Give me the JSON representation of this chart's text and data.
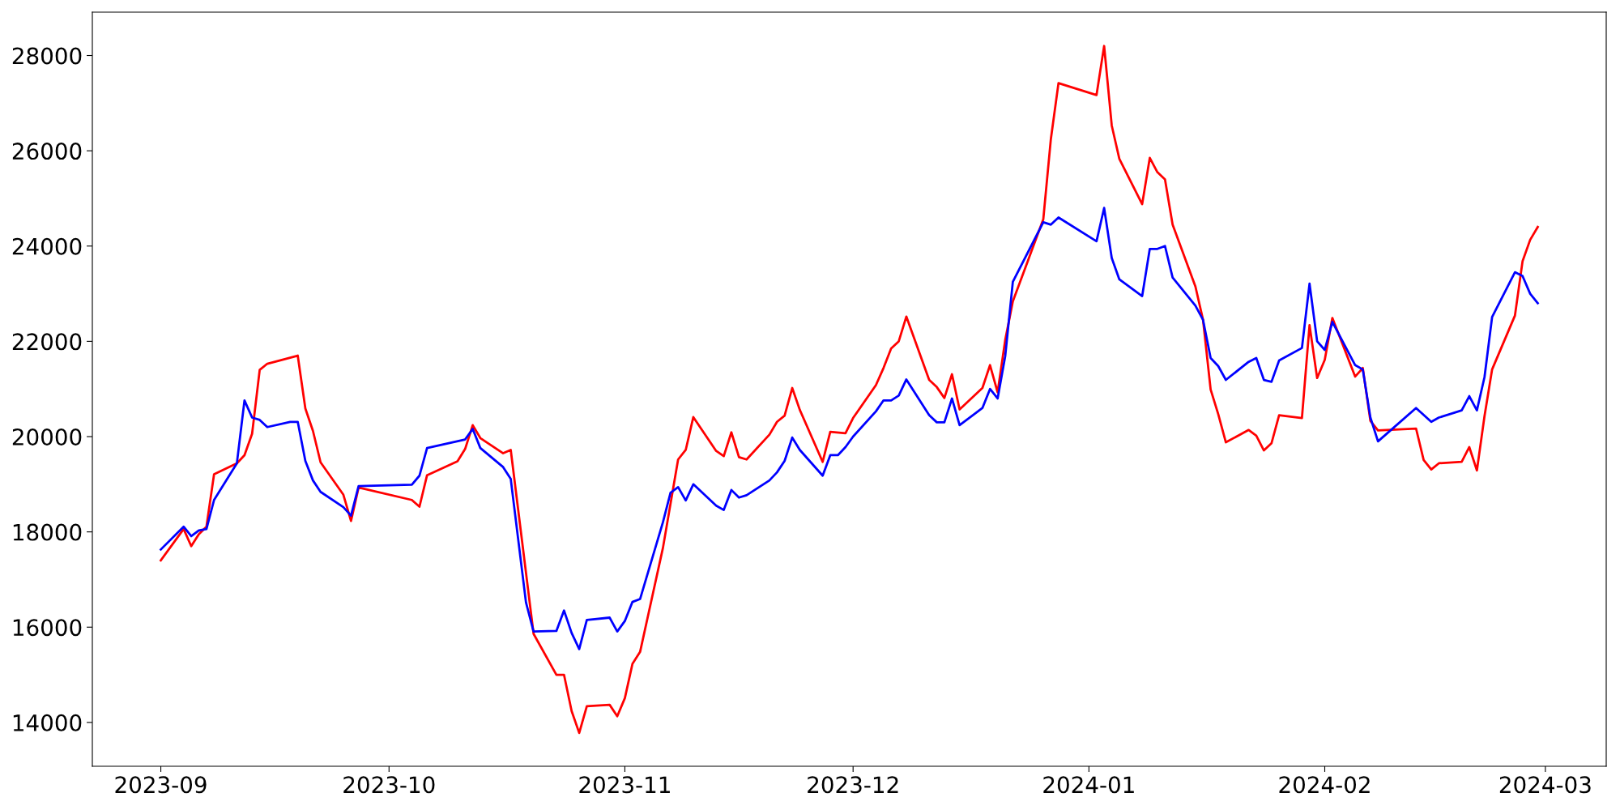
{
  "chart_data": {
    "type": "line",
    "xlim": [
      "2023-08-23",
      "2024-03-09"
    ],
    "ylim": [
      13080,
      28910
    ],
    "xticks": [
      "2023-09",
      "2023-10",
      "2023-11",
      "2023-12",
      "2024-01",
      "2024-02",
      "2024-03"
    ],
    "yticks": [
      14000,
      16000,
      18000,
      20000,
      22000,
      24000,
      26000,
      28000
    ],
    "grid": false,
    "marker": "none",
    "line_style": "solid",
    "series": [
      {
        "color": "#ff0000",
        "x": [
          "2023-09-01",
          "2023-09-04",
          "2023-09-05",
          "2023-09-06",
          "2023-09-07",
          "2023-09-08",
          "2023-09-11",
          "2023-09-12",
          "2023-09-13",
          "2023-09-14",
          "2023-09-15",
          "2023-09-19",
          "2023-09-20",
          "2023-09-21",
          "2023-09-22",
          "2023-09-25",
          "2023-09-26",
          "2023-09-27",
          "2023-10-04",
          "2023-10-05",
          "2023-10-06",
          "2023-10-10",
          "2023-10-11",
          "2023-10-12",
          "2023-10-13",
          "2023-10-16",
          "2023-10-17",
          "2023-10-20",
          "2023-10-23",
          "2023-10-24",
          "2023-10-25",
          "2023-10-26",
          "2023-10-27",
          "2023-10-30",
          "2023-10-31",
          "2023-11-01",
          "2023-11-02",
          "2023-11-03",
          "2023-11-06",
          "2023-11-08",
          "2023-11-09",
          "2023-11-10",
          "2023-11-13",
          "2023-11-14",
          "2023-11-15",
          "2023-11-16",
          "2023-11-17",
          "2023-11-20",
          "2023-11-21",
          "2023-11-22",
          "2023-11-23",
          "2023-11-24",
          "2023-11-27",
          "2023-11-28",
          "2023-11-30",
          "2023-12-01",
          "2023-12-04",
          "2023-12-05",
          "2023-12-06",
          "2023-12-07",
          "2023-12-08",
          "2023-12-11",
          "2023-12-12",
          "2023-12-13",
          "2023-12-14",
          "2023-12-15",
          "2023-12-18",
          "2023-12-19",
          "2023-12-20",
          "2023-12-21",
          "2023-12-22",
          "2023-12-26",
          "2023-12-27",
          "2023-12-28",
          "2024-01-02",
          "2024-01-03",
          "2024-01-04",
          "2024-01-05",
          "2024-01-08",
          "2024-01-09",
          "2024-01-10",
          "2024-01-11",
          "2024-01-12",
          "2024-01-15",
          "2024-01-16",
          "2024-01-17",
          "2024-01-18",
          "2024-01-19",
          "2024-01-22",
          "2024-01-23",
          "2024-01-24",
          "2024-01-25",
          "2024-01-26",
          "2024-01-29",
          "2024-01-30",
          "2024-01-31",
          "2024-02-01",
          "2024-02-02",
          "2024-02-05",
          "2024-02-06",
          "2024-02-07",
          "2024-02-08",
          "2024-02-13",
          "2024-02-14",
          "2024-02-15",
          "2024-02-16",
          "2024-02-19",
          "2024-02-20",
          "2024-02-21",
          "2024-02-22",
          "2024-02-23",
          "2024-02-26",
          "2024-02-27",
          "2024-02-28",
          "2024-02-29"
        ],
        "values": [
          17400,
          18060,
          17700,
          17950,
          18110,
          19210,
          19440,
          19610,
          20060,
          21400,
          21530,
          21700,
          20590,
          20120,
          19460,
          18780,
          18230,
          18930,
          18670,
          18530,
          19190,
          19480,
          19740,
          20240,
          19970,
          19650,
          19720,
          15860,
          15000,
          15000,
          14240,
          13780,
          14340,
          14370,
          14130,
          14510,
          15230,
          15480,
          17660,
          19520,
          19720,
          20410,
          19700,
          19590,
          20090,
          19570,
          19520,
          20040,
          20310,
          20440,
          21020,
          20560,
          19470,
          20100,
          20070,
          20390,
          21080,
          21440,
          21850,
          22000,
          22520,
          21190,
          21040,
          20810,
          21310,
          20570,
          21020,
          21500,
          20930,
          22030,
          22840,
          24560,
          26250,
          27420,
          27170,
          28200,
          26530,
          25830,
          24880,
          25850,
          25550,
          25400,
          24450,
          23150,
          22450,
          20990,
          20470,
          19880,
          20140,
          20020,
          19710,
          19860,
          20450,
          20390,
          22340,
          21230,
          21610,
          22490,
          21260,
          21440,
          20330,
          20130,
          20170,
          19510,
          19310,
          19440,
          19470,
          19780,
          19290,
          20430,
          21410,
          22540,
          23680,
          24130,
          24400
        ]
      },
      {
        "color": "#0000ff",
        "x": [
          "2023-09-01",
          "2023-09-04",
          "2023-09-05",
          "2023-09-06",
          "2023-09-07",
          "2023-09-08",
          "2023-09-11",
          "2023-09-12",
          "2023-09-13",
          "2023-09-14",
          "2023-09-15",
          "2023-09-18",
          "2023-09-19",
          "2023-09-20",
          "2023-09-21",
          "2023-09-22",
          "2023-09-25",
          "2023-09-26",
          "2023-09-27",
          "2023-10-04",
          "2023-10-05",
          "2023-10-06",
          "2023-10-11",
          "2023-10-12",
          "2023-10-13",
          "2023-10-16",
          "2023-10-17",
          "2023-10-19",
          "2023-10-20",
          "2023-10-23",
          "2023-10-24",
          "2023-10-25",
          "2023-10-26",
          "2023-10-27",
          "2023-10-30",
          "2023-10-31",
          "2023-11-01",
          "2023-11-02",
          "2023-11-03",
          "2023-11-06",
          "2023-11-07",
          "2023-11-08",
          "2023-11-09",
          "2023-11-10",
          "2023-11-13",
          "2023-11-14",
          "2023-11-15",
          "2023-11-16",
          "2023-11-17",
          "2023-11-20",
          "2023-11-21",
          "2023-11-22",
          "2023-11-23",
          "2023-11-24",
          "2023-11-27",
          "2023-11-28",
          "2023-11-29",
          "2023-11-30",
          "2023-12-01",
          "2023-12-04",
          "2023-12-05",
          "2023-12-06",
          "2023-12-07",
          "2023-12-08",
          "2023-12-11",
          "2023-12-12",
          "2023-12-13",
          "2023-12-14",
          "2023-12-15",
          "2023-12-18",
          "2023-12-19",
          "2023-12-20",
          "2023-12-21",
          "2023-12-22",
          "2023-12-26",
          "2023-12-27",
          "2023-12-28",
          "2024-01-02",
          "2024-01-03",
          "2024-01-04",
          "2024-01-05",
          "2024-01-08",
          "2024-01-09",
          "2024-01-10",
          "2024-01-11",
          "2024-01-12",
          "2024-01-15",
          "2024-01-16",
          "2024-01-17",
          "2024-01-18",
          "2024-01-19",
          "2024-01-22",
          "2024-01-23",
          "2024-01-24",
          "2024-01-25",
          "2024-01-26",
          "2024-01-29",
          "2024-01-30",
          "2024-01-31",
          "2024-02-01",
          "2024-02-02",
          "2024-02-05",
          "2024-02-06",
          "2024-02-07",
          "2024-02-08",
          "2024-02-13",
          "2024-02-15",
          "2024-02-16",
          "2024-02-19",
          "2024-02-20",
          "2024-02-21",
          "2024-02-22",
          "2024-02-23",
          "2024-02-26",
          "2024-02-27",
          "2024-02-28",
          "2024-02-29"
        ],
        "values": [
          17630,
          18110,
          17910,
          18030,
          18060,
          18670,
          19440,
          20760,
          20400,
          20350,
          20200,
          20310,
          20310,
          19490,
          19080,
          18840,
          18520,
          18340,
          18960,
          18990,
          19180,
          19760,
          19940,
          20160,
          19760,
          19360,
          19110,
          16520,
          15910,
          15920,
          16350,
          15880,
          15540,
          16150,
          16200,
          15910,
          16130,
          16530,
          16590,
          18200,
          18820,
          18940,
          18660,
          19000,
          18550,
          18460,
          18880,
          18720,
          18770,
          19080,
          19250,
          19490,
          19980,
          19720,
          19180,
          19610,
          19610,
          19780,
          20000,
          20530,
          20760,
          20760,
          20860,
          21200,
          20450,
          20300,
          20300,
          20800,
          20240,
          20600,
          21000,
          20800,
          21690,
          23250,
          24500,
          24450,
          24600,
          24100,
          24800,
          23750,
          23300,
          22950,
          23940,
          23940,
          24000,
          23340,
          22750,
          22450,
          21650,
          21480,
          21190,
          21570,
          21650,
          21190,
          21150,
          21600,
          21860,
          23210,
          22000,
          21820,
          22410,
          21500,
          21410,
          20400,
          19900,
          20600,
          20310,
          20400,
          20550,
          20850,
          20550,
          21250,
          22510,
          23450,
          23370,
          23000,
          22800
        ]
      }
    ]
  }
}
